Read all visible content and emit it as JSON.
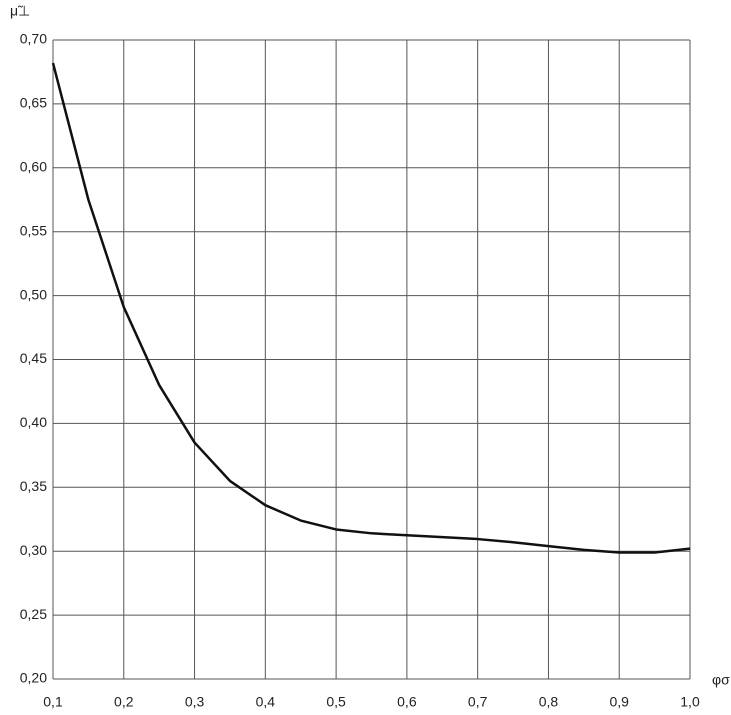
{
  "chart_data": {
    "type": "line",
    "y_label": "μ̃⊥",
    "x_label": "φσ",
    "x": [
      0.1,
      0.15,
      0.2,
      0.25,
      0.3,
      0.35,
      0.4,
      0.45,
      0.5,
      0.55,
      0.6,
      0.65,
      0.7,
      0.75,
      0.8,
      0.85,
      0.9,
      0.95,
      1.0
    ],
    "values": [
      0.682,
      0.575,
      0.491,
      0.43,
      0.385,
      0.355,
      0.336,
      0.324,
      0.317,
      0.314,
      0.3125,
      0.311,
      0.3095,
      0.307,
      0.304,
      0.301,
      0.299,
      0.299,
      0.302
    ],
    "color": "#111111",
    "xlim": [
      0.1,
      1.0
    ],
    "xticks": [
      {
        "value": 0.1,
        "label": "0,1"
      },
      {
        "value": 0.2,
        "label": "0,2"
      },
      {
        "value": 0.3,
        "label": "0,3"
      },
      {
        "value": 0.4,
        "label": "0,4"
      },
      {
        "value": 0.5,
        "label": "0,5"
      },
      {
        "value": 0.6,
        "label": "0,6"
      },
      {
        "value": 0.7,
        "label": "0,7"
      },
      {
        "value": 0.8,
        "label": "0,8"
      },
      {
        "value": 0.9,
        "label": "0,9"
      },
      {
        "value": 1.0,
        "label": "1,0"
      }
    ],
    "ylim": [
      0.2,
      0.7
    ],
    "yticks": [
      {
        "value": 0.2,
        "label": "0,20"
      },
      {
        "value": 0.25,
        "label": "0,25"
      },
      {
        "value": 0.3,
        "label": "0,30"
      },
      {
        "value": 0.35,
        "label": "0,35"
      },
      {
        "value": 0.4,
        "label": "0,40"
      },
      {
        "value": 0.45,
        "label": "0,45"
      },
      {
        "value": 0.5,
        "label": "0,50"
      },
      {
        "value": 0.55,
        "label": "0,55"
      },
      {
        "value": 0.6,
        "label": "0,60"
      },
      {
        "value": 0.65,
        "label": "0,65"
      },
      {
        "value": 0.7,
        "label": "0,70"
      }
    ],
    "grid": true
  }
}
